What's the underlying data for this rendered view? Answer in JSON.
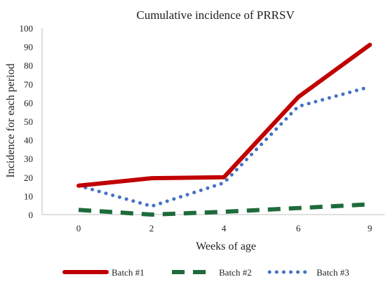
{
  "chart_data": {
    "type": "line",
    "title": "Cumulative incidence of PRRSV",
    "xlabel": "Weeks of age",
    "ylabel": "Incidence for each period",
    "categories": [
      "0",
      "2",
      "4",
      "6",
      "9"
    ],
    "ylim": [
      0,
      100
    ],
    "yticks": [
      0,
      10,
      20,
      30,
      40,
      50,
      60,
      70,
      80,
      90,
      100
    ],
    "grid": false,
    "legend": "bottom",
    "series": [
      {
        "name": "Batch #1",
        "values": [
          15.5,
          19.5,
          20,
          63,
          91
        ],
        "color": "#c00000",
        "style": "solid"
      },
      {
        "name": "Batch #2",
        "values": [
          2.5,
          0,
          1.5,
          3.5,
          5.5
        ],
        "color": "#1e6b3c",
        "style": "dashed"
      },
      {
        "name": "Batch #3",
        "values": [
          15.5,
          4.5,
          17,
          58,
          68.5
        ],
        "color": "#4472c4",
        "style": "dotted"
      }
    ]
  }
}
